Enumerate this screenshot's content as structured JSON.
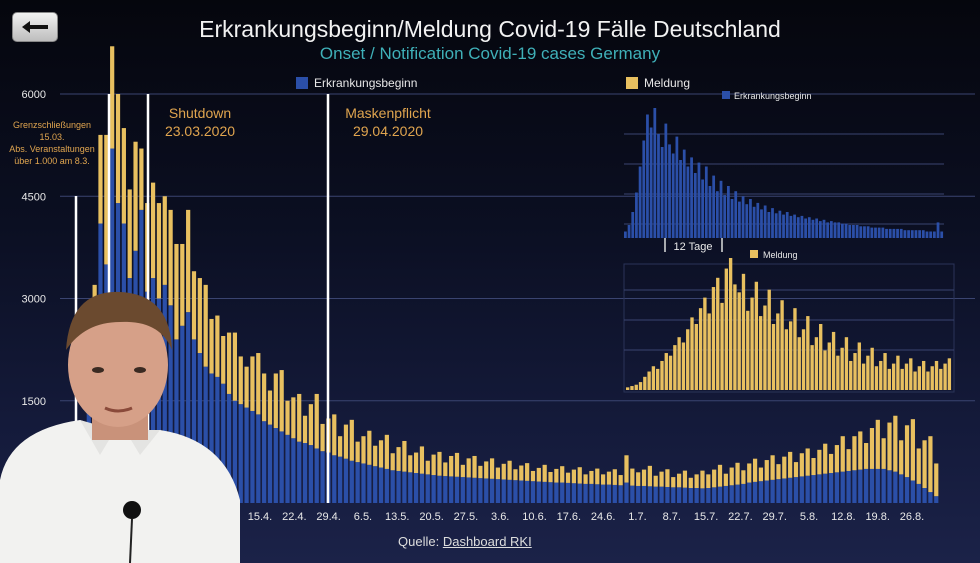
{
  "header": {
    "title": "Erkrankungsbeginn/Meldung Covid-19 Fälle Deutschland",
    "subtitle": "Onset / Notification Covid-19 cases Germany"
  },
  "source": {
    "label": "Quelle:",
    "link": "Dashboard RKI"
  },
  "colors": {
    "onset": "#2b4fa8",
    "notification": "#e8c060",
    "annotation": "#e0a54f",
    "line": "#ffffff"
  },
  "chart_data": [
    {
      "type": "bar",
      "stacked": true,
      "legend": [
        "Erkrankungsbeginn",
        "Meldung"
      ],
      "yticks": [
        1500,
        3000,
        4500,
        6000
      ],
      "ylim": [
        0,
        6000
      ],
      "xticks": [
        "15.4.",
        "22.4.",
        "29.4.",
        "6.5.",
        "13.5.",
        "20.5.",
        "27.5.",
        "3.6.",
        "10.6.",
        "17.6.",
        "24.6.",
        "1.7.",
        "8.7.",
        "15.7.",
        "22.7.",
        "29.7.",
        "5.8.",
        "12.8.",
        "19.8.",
        "26.8."
      ],
      "series": [
        {
          "name": "Erkrankungsbeginn",
          "values": [
            400,
            700,
            1400,
            2200,
            4100,
            3500,
            5200,
            4400,
            4100,
            3300,
            3700,
            4300,
            3100,
            3300,
            3000,
            3200,
            2900,
            2400,
            2600,
            2800,
            2400,
            2200,
            2000,
            1900,
            1850,
            1750,
            1600,
            1500,
            1450,
            1400,
            1350,
            1300,
            1200,
            1150,
            1100,
            1050,
            1000,
            950,
            900,
            880,
            850,
            800,
            760,
            740,
            700,
            680,
            650,
            620,
            600,
            580,
            560,
            540,
            520,
            500,
            480,
            470,
            460,
            450,
            440,
            430,
            420,
            410,
            400,
            395,
            390,
            385,
            380,
            375,
            370,
            365,
            360,
            355,
            350,
            345,
            340,
            335,
            330,
            325,
            320,
            315,
            310,
            305,
            300,
            300,
            295,
            290,
            285,
            280,
            280,
            275,
            270,
            270,
            265,
            260,
            300,
            255,
            250,
            250,
            245,
            240,
            240,
            235,
            230,
            230,
            225,
            220,
            220,
            215,
            220,
            230,
            240,
            250,
            260,
            270,
            280,
            300,
            310,
            320,
            330,
            340,
            350,
            360,
            370,
            380,
            390,
            400,
            410,
            420,
            430,
            440,
            450,
            460,
            470,
            480,
            490,
            500,
            500,
            500,
            500,
            480,
            460,
            420,
            380,
            330,
            280,
            220,
            160,
            100
          ]
        },
        {
          "name": "Meldung",
          "values": [
            200,
            300,
            700,
            1000,
            1300,
            1900,
            1500,
            1600,
            1400,
            1300,
            1600,
            900,
            1300,
            1400,
            1400,
            1300,
            1400,
            1400,
            1200,
            1500,
            1000,
            1100,
            1200,
            800,
            900,
            700,
            900,
            1000,
            700,
            600,
            800,
            900,
            700,
            500,
            800,
            900,
            500,
            600,
            700,
            400,
            600,
            800,
            400,
            500,
            600,
            300,
            500,
            600,
            300,
            400,
            500,
            300,
            400,
            500,
            250,
            350,
            450,
            250,
            300,
            400,
            200,
            300,
            350,
            200,
            300,
            350,
            180,
            280,
            320,
            180,
            250,
            300,
            170,
            230,
            280,
            160,
            220,
            260,
            150,
            200,
            250,
            150,
            200,
            240,
            150,
            200,
            240,
            140,
            190,
            230,
            150,
            190,
            230,
            150,
            400,
            250,
            200,
            240,
            300,
            160,
            220,
            260,
            150,
            200,
            250,
            150,
            200,
            260,
            200,
            260,
            320,
            180,
            260,
            320,
            200,
            280,
            340,
            200,
            300,
            360,
            220,
            320,
            380,
            220,
            340,
            400,
            250,
            360,
            440,
            280,
            400,
            520,
            320,
            500,
            560,
            380,
            600,
            720,
            450,
            700,
            820,
            500,
            760,
            900,
            520,
            700,
            820,
            480,
            620,
            640,
            600,
            560,
            380
          ]
        }
      ],
      "annotations": [
        {
          "label": "Grenzschließungen 15.03. Abs. Veranstaltungen über 1.000 am 8.3."
        },
        {
          "label": "Shutdown 23.03.2020"
        },
        {
          "label": "Maskenpflicht 29.04.2020"
        }
      ]
    },
    {
      "type": "bar",
      "legend": [
        "Erkrankungsbeginn"
      ],
      "annotation": "12 Tage",
      "values": [
        5,
        10,
        20,
        35,
        55,
        75,
        95,
        85,
        100,
        80,
        70,
        88,
        72,
        65,
        78,
        60,
        68,
        55,
        62,
        50,
        58,
        45,
        55,
        40,
        48,
        36,
        44,
        33,
        40,
        30,
        36,
        28,
        32,
        26,
        30,
        24,
        27,
        22,
        25,
        20,
        23,
        19,
        21,
        18,
        20,
        17,
        18,
        16,
        17,
        15,
        16,
        14,
        15,
        13,
        14,
        12,
        13,
        12,
        12,
        11,
        11,
        10,
        10,
        10,
        9,
        9,
        9,
        8,
        8,
        8,
        8,
        7,
        7,
        7,
        7,
        7,
        6,
        6,
        6,
        6,
        6,
        6,
        5,
        5,
        5,
        12,
        5
      ]
    },
    {
      "type": "bar",
      "legend": [
        "Meldung"
      ],
      "values": [
        2,
        3,
        4,
        6,
        10,
        14,
        18,
        16,
        22,
        28,
        26,
        34,
        40,
        36,
        46,
        55,
        50,
        62,
        70,
        58,
        78,
        85,
        66,
        92,
        100,
        80,
        74,
        88,
        60,
        70,
        82,
        56,
        64,
        76,
        50,
        58,
        68,
        46,
        52,
        62,
        40,
        46,
        56,
        34,
        40,
        50,
        30,
        36,
        44,
        26,
        32,
        40,
        22,
        28,
        36,
        20,
        26,
        32,
        18,
        22,
        28,
        16,
        20,
        26,
        16,
        20,
        24,
        14,
        18,
        22,
        14,
        18,
        22,
        16,
        20,
        24
      ]
    }
  ]
}
